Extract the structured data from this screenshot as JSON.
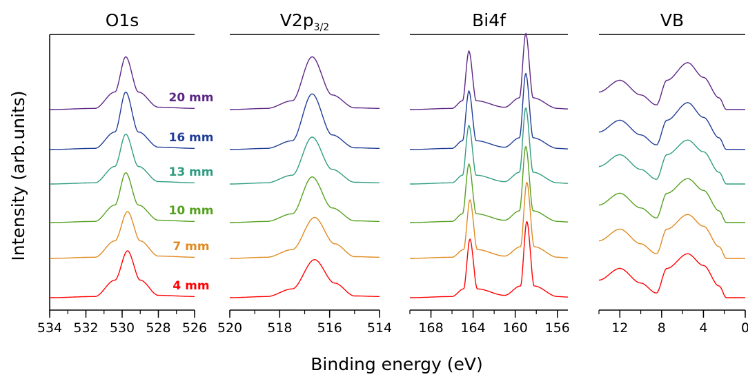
{
  "colors": [
    "#ff0000",
    "#e08a20",
    "#54a11f",
    "#2f9c80",
    "#1f3c96",
    "#5c2585"
  ],
  "y_axis_label": "Intensity (arb.units)",
  "x_axis_label": "Binding energy (eV)",
  "chart_data": [
    {
      "type": "line",
      "title": "O1s",
      "xlim": [
        534,
        526
      ],
      "x_ticks": [
        534,
        532,
        530,
        528,
        526
      ],
      "tick_labels": [
        "534",
        "532",
        "530",
        "528",
        "526"
      ],
      "series": [
        {
          "name": "4 mm",
          "x": [
            534,
            531.5,
            530.4,
            529.7,
            529.0,
            528.0,
            526
          ],
          "y": [
            0,
            0.02,
            0.3,
            0.8,
            0.3,
            0.04,
            0.02
          ]
        },
        {
          "name": "7 mm",
          "x": [
            534,
            531.5,
            530.4,
            529.7,
            529.0,
            528.0,
            526
          ],
          "y": [
            0,
            0.02,
            0.3,
            0.8,
            0.3,
            0.04,
            0.02
          ]
        },
        {
          "name": "10 mm",
          "x": [
            534,
            531.5,
            530.4,
            529.8,
            529.1,
            528.0,
            526
          ],
          "y": [
            0,
            0.02,
            0.3,
            0.85,
            0.3,
            0.04,
            0.02
          ]
        },
        {
          "name": "13 mm",
          "x": [
            534,
            531.5,
            530.4,
            529.8,
            529.1,
            528.0,
            526
          ],
          "y": [
            0,
            0.02,
            0.3,
            0.85,
            0.3,
            0.04,
            0.02
          ]
        },
        {
          "name": "16 mm",
          "x": [
            534,
            531.5,
            530.4,
            529.8,
            529.1,
            528.0,
            526
          ],
          "y": [
            0,
            0.02,
            0.3,
            0.98,
            0.3,
            0.04,
            0.02
          ]
        },
        {
          "name": "20 mm",
          "x": [
            534,
            531.5,
            530.4,
            529.8,
            529.1,
            528.0,
            526
          ],
          "y": [
            0,
            0.02,
            0.3,
            0.9,
            0.3,
            0.04,
            0.02
          ]
        }
      ]
    },
    {
      "type": "line",
      "title": "V2p",
      "title_sub": "3/2",
      "xlim": [
        520,
        514
      ],
      "x_ticks": [
        520,
        518,
        516,
        514
      ],
      "tick_labels": [
        "520",
        "518",
        "516",
        "514"
      ],
      "series": [
        {
          "name": "4 mm",
          "x": [
            520,
            518.5,
            517.5,
            516.6,
            515.8,
            515.0,
            514
          ],
          "y": [
            0,
            0.02,
            0.15,
            0.65,
            0.25,
            0.03,
            0.02
          ]
        },
        {
          "name": "7 mm",
          "x": [
            520,
            518.5,
            517.5,
            516.6,
            515.8,
            515.0,
            514
          ],
          "y": [
            0,
            0.02,
            0.15,
            0.7,
            0.25,
            0.03,
            0.02
          ]
        },
        {
          "name": "10 mm",
          "x": [
            520,
            518.5,
            517.5,
            516.7,
            515.9,
            515.0,
            514
          ],
          "y": [
            0,
            0.02,
            0.15,
            0.78,
            0.25,
            0.03,
            0.02
          ]
        },
        {
          "name": "13 mm",
          "x": [
            520,
            518.5,
            517.5,
            516.7,
            515.9,
            515.0,
            514
          ],
          "y": [
            0,
            0.02,
            0.15,
            0.8,
            0.25,
            0.03,
            0.02
          ]
        },
        {
          "name": "16 mm",
          "x": [
            520,
            518.5,
            517.5,
            516.7,
            515.9,
            515.0,
            514
          ],
          "y": [
            0,
            0.02,
            0.15,
            0.95,
            0.25,
            0.03,
            0.02
          ]
        },
        {
          "name": "20 mm",
          "x": [
            520,
            518.5,
            517.5,
            516.7,
            515.9,
            515.0,
            514
          ],
          "y": [
            0,
            0.02,
            0.15,
            0.9,
            0.25,
            0.03,
            0.02
          ]
        }
      ]
    },
    {
      "type": "line",
      "title": "Bi4f",
      "xlim": [
        170,
        155
      ],
      "x_ticks": [
        168,
        164,
        160,
        156
      ],
      "tick_labels": [
        "168",
        "164",
        "160",
        "156"
      ],
      "series": [
        {
          "name": "4 mm",
          "x": [
            170,
            166,
            164.9,
            164.3,
            163.6,
            161,
            159.5,
            158.9,
            158.2,
            156,
            155
          ],
          "y": [
            0,
            0.02,
            0.15,
            1.0,
            0.15,
            0.04,
            0.2,
            1.3,
            0.2,
            0.02,
            0.01
          ]
        },
        {
          "name": "7 mm",
          "x": [
            170,
            166,
            164.9,
            164.3,
            163.6,
            161,
            159.5,
            158.9,
            158.2,
            156,
            155
          ],
          "y": [
            0,
            0.02,
            0.15,
            1.0,
            0.15,
            0.04,
            0.2,
            1.3,
            0.2,
            0.02,
            0.01
          ]
        },
        {
          "name": "10 mm",
          "x": [
            170,
            166,
            165.0,
            164.4,
            163.7,
            161,
            159.6,
            159.0,
            158.3,
            156,
            155
          ],
          "y": [
            0,
            0.02,
            0.15,
            1.0,
            0.15,
            0.04,
            0.2,
            1.3,
            0.2,
            0.02,
            0.01
          ]
        },
        {
          "name": "13 mm",
          "x": [
            170,
            166,
            165.0,
            164.4,
            163.7,
            161,
            159.6,
            159.0,
            158.3,
            156,
            155
          ],
          "y": [
            0,
            0.02,
            0.15,
            1.0,
            0.15,
            0.04,
            0.2,
            1.3,
            0.2,
            0.02,
            0.01
          ]
        },
        {
          "name": "16 mm",
          "x": [
            170,
            166,
            165.0,
            164.4,
            163.7,
            161,
            159.6,
            159.0,
            158.3,
            156,
            155
          ],
          "y": [
            0,
            0.02,
            0.15,
            1.0,
            0.15,
            0.04,
            0.2,
            1.3,
            0.2,
            0.02,
            0.01
          ]
        },
        {
          "name": "20 mm",
          "x": [
            170,
            166,
            165.0,
            164.4,
            163.7,
            161,
            159.6,
            159.0,
            158.3,
            156,
            155
          ],
          "y": [
            0,
            0.02,
            0.15,
            1.0,
            0.15,
            0.04,
            0.2,
            1.3,
            0.2,
            0.02,
            0.01
          ]
        }
      ]
    },
    {
      "type": "line",
      "title": "VB",
      "xlim": [
        14,
        0
      ],
      "x_ticks": [
        12,
        8,
        4,
        0
      ],
      "tick_labels": [
        "12",
        "8",
        "4",
        "0"
      ],
      "series": [
        {
          "name": "4 mm",
          "x": [
            14,
            12,
            10,
            8.5,
            7.5,
            5.5,
            4,
            2.5,
            1.8,
            0
          ],
          "y": [
            0.3,
            0.5,
            0.25,
            0.08,
            0.5,
            0.75,
            0.55,
            0.2,
            0.0,
            0.0
          ]
        },
        {
          "name": "7 mm",
          "x": [
            14,
            12,
            10,
            8.5,
            7.5,
            5.5,
            4,
            2.5,
            1.8,
            0
          ],
          "y": [
            0.3,
            0.5,
            0.25,
            0.08,
            0.5,
            0.75,
            0.55,
            0.2,
            0.0,
            0.0
          ]
        },
        {
          "name": "10 mm",
          "x": [
            14,
            12,
            10,
            8.5,
            7.5,
            5.5,
            4,
            2.5,
            1.8,
            0
          ],
          "y": [
            0.3,
            0.5,
            0.25,
            0.08,
            0.5,
            0.75,
            0.55,
            0.2,
            0.0,
            0.0
          ]
        },
        {
          "name": "13 mm",
          "x": [
            14,
            12,
            10,
            8.5,
            7.5,
            5.5,
            4,
            2.5,
            1.8,
            0
          ],
          "y": [
            0.3,
            0.5,
            0.25,
            0.08,
            0.5,
            0.75,
            0.55,
            0.2,
            0.0,
            0.0
          ]
        },
        {
          "name": "16 mm",
          "x": [
            14,
            12,
            10,
            8.5,
            7.5,
            5.5,
            4,
            2.5,
            1.8,
            0
          ],
          "y": [
            0.3,
            0.5,
            0.25,
            0.08,
            0.5,
            0.8,
            0.55,
            0.2,
            0.0,
            0.0
          ]
        },
        {
          "name": "20 mm",
          "x": [
            14,
            12,
            10,
            8.5,
            7.5,
            5.5,
            4,
            2.5,
            1.8,
            0
          ],
          "y": [
            0.3,
            0.5,
            0.25,
            0.08,
            0.5,
            0.8,
            0.55,
            0.2,
            0.0,
            0.0
          ]
        }
      ]
    }
  ]
}
